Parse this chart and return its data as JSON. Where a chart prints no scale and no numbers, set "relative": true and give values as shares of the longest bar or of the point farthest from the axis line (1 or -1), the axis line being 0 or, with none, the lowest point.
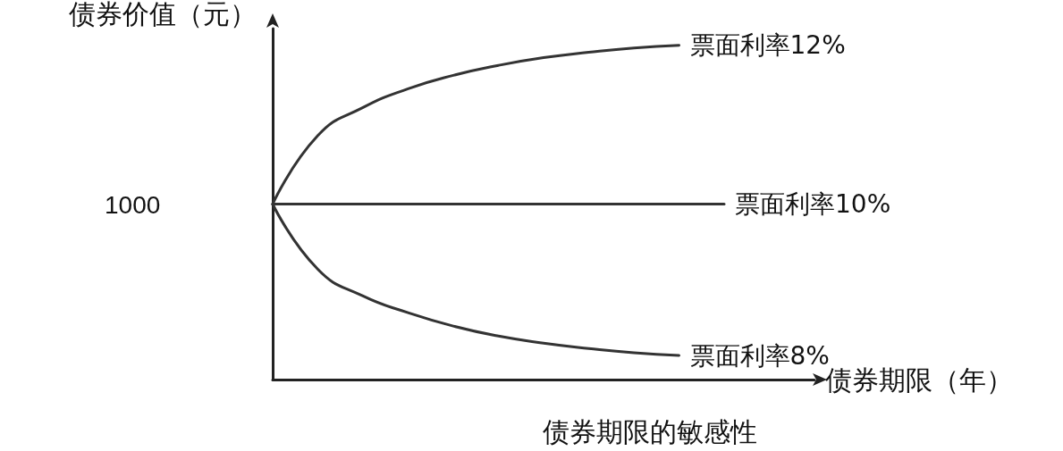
{
  "chart_data": {
    "type": "line",
    "title": "债券期限的敏感性",
    "xlabel": "债券期限（年）",
    "ylabel": "债券价值（元）",
    "relative": true,
    "categories": [
      null,
      null,
      null,
      null,
      null,
      null,
      null,
      null,
      null,
      null,
      null,
      null,
      null
    ],
    "series": [
      {
        "name": "票面利率12%",
        "color": "#333333",
        "values": [
          0.525,
          0.73,
          0.814,
          0.87,
          0.91,
          0.94,
          0.963,
          0.979,
          0.992,
          1.0,
          null,
          null,
          null
        ]
      },
      {
        "name": "票面利率10%",
        "color": "#333333",
        "values": [
          0.525,
          0.525,
          0.525,
          0.525,
          0.525,
          0.525,
          0.525,
          0.525,
          0.525,
          0.525,
          0.525,
          null,
          null
        ]
      },
      {
        "name": "票面利率8%",
        "color": "#333333",
        "values": [
          0.525,
          0.33,
          0.25,
          0.2,
          0.16,
          0.13,
          0.109,
          0.093,
          0.08,
          0.072,
          null,
          null,
          null
        ]
      }
    ],
    "annotations": [
      "1000"
    ],
    "marker": "none",
    "line_style": "solid",
    "grid": false,
    "legend": false
  }
}
